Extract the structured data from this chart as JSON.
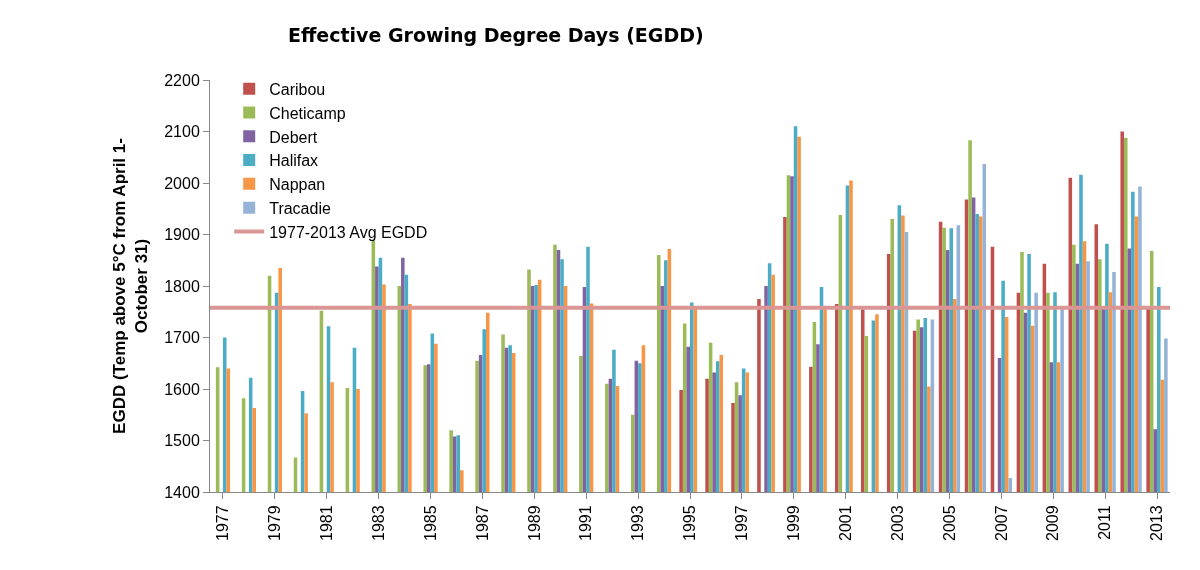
{
  "chart_data": {
    "type": "bar",
    "title": "Effective Growing Degree Days (EGDD)",
    "ylabel": "EGDD (Temp above 5°C from April 1-October 31)",
    "categories": [
      "1977",
      null,
      "1979",
      null,
      "1981",
      null,
      "1983",
      null,
      "1985",
      null,
      "1987",
      null,
      "1989",
      null,
      "1991",
      null,
      "1993",
      null,
      "1995",
      null,
      "1997",
      null,
      "1999",
      null,
      "2001",
      null,
      "2003",
      null,
      "2005",
      null,
      "2007",
      null,
      "2009",
      null,
      "2011",
      null,
      "2013"
    ],
    "series": [
      {
        "name": "Caribou",
        "color": "#c0504d",
        "values": [
          null,
          null,
          null,
          null,
          null,
          null,
          null,
          null,
          null,
          null,
          null,
          null,
          null,
          null,
          null,
          null,
          null,
          null,
          1598,
          1620,
          1573,
          1775,
          1934,
          1643,
          1765,
          1755,
          1862,
          1713,
          1925,
          1968,
          1876,
          1787,
          1843,
          2010,
          1920,
          2100,
          1760
        ]
      },
      {
        "name": "Cheticamp",
        "color": "#9bbb59",
        "values": [
          1642,
          1582,
          1820,
          1467,
          1752,
          1602,
          1888,
          1800,
          1646,
          1520,
          1655,
          1706,
          1832,
          1880,
          1664,
          1610,
          1550,
          1860,
          1727,
          1690,
          1613,
          null,
          2015,
          1730,
          1938,
          1703,
          1930,
          1735,
          1913,
          2083,
          null,
          1866,
          1787,
          1880,
          1852,
          2088,
          1868
        ]
      },
      {
        "name": "Debert",
        "color": "#8064a2",
        "values": [
          null,
          null,
          null,
          null,
          null,
          null,
          1838,
          1855,
          1648,
          1508,
          1666,
          1680,
          1800,
          1870,
          1798,
          1620,
          1655,
          1800,
          1682,
          1632,
          1588,
          1800,
          2013,
          1687,
          null,
          null,
          null,
          1720,
          1870,
          1972,
          1660,
          1748,
          1652,
          1843,
          1760,
          1873,
          1522
        ]
      },
      {
        "name": "Halifax",
        "color": "#4bacc6",
        "values": [
          1700,
          1622,
          1787,
          1596,
          1722,
          1680,
          1855,
          1822,
          1708,
          1510,
          1716,
          1685,
          1802,
          1852,
          1876,
          1676,
          1650,
          1850,
          1768,
          1654,
          1640,
          1844,
          2110,
          1798,
          1995,
          1733,
          1957,
          1738,
          1912,
          1940,
          1810,
          1862,
          1788,
          2016,
          1882,
          1983,
          1798
        ]
      },
      {
        "name": "Nappan",
        "color": "#f79646",
        "values": [
          1640,
          1563,
          1835,
          1553,
          1613,
          1600,
          1803,
          1765,
          1688,
          1442,
          1748,
          1670,
          1812,
          1800,
          1766,
          1606,
          1685,
          1872,
          1760,
          1666,
          1632,
          1822,
          2090,
          1755,
          2005,
          1745,
          1937,
          1605,
          1775,
          1935,
          1740,
          1723,
          1652,
          1887,
          1788,
          1935,
          1618
        ]
      },
      {
        "name": "Tracadie",
        "color": "#95b3d7",
        "values": [
          null,
          null,
          null,
          null,
          null,
          null,
          null,
          null,
          null,
          null,
          null,
          null,
          null,
          null,
          null,
          null,
          null,
          null,
          null,
          null,
          null,
          null,
          null,
          null,
          null,
          null,
          1905,
          1735,
          1918,
          2037,
          1427,
          1787,
          1755,
          1848,
          1827,
          1993,
          1698
        ]
      }
    ],
    "ref_lines": [
      {
        "axis": "y",
        "value": 1758,
        "label": "1977-2013 Avg EGDD",
        "color": "#d99694",
        "line_style": "solid"
      }
    ],
    "ylim": [
      1400,
      2200
    ],
    "yticks": [
      1400,
      1500,
      1600,
      1700,
      1800,
      1900,
      2000,
      2100,
      2200
    ],
    "grid": false,
    "legend": "top left"
  }
}
